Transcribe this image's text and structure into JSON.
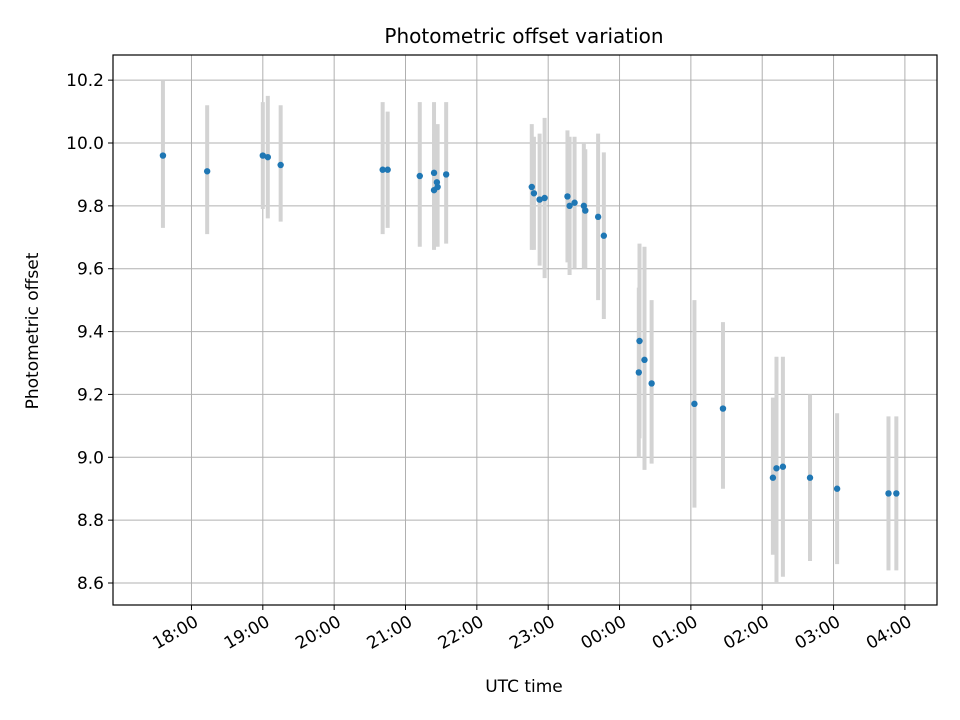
{
  "chart_data": {
    "type": "scatter",
    "title": "Photometric offset variation",
    "xlabel": "UTC time",
    "ylabel": "Photometric offset",
    "xlim_hours": [
      16.9,
      28.45
    ],
    "ylim": [
      8.53,
      10.28
    ],
    "grid": true,
    "y_ticks": [
      8.6,
      8.8,
      9.0,
      9.2,
      9.4,
      9.6,
      9.8,
      10.0,
      10.2
    ],
    "y_tick_labels": [
      "8.6",
      "8.8",
      "9.0",
      "9.2",
      "9.4",
      "9.6",
      "9.8",
      "10.0",
      "10.2"
    ],
    "x_ticks_hours": [
      18,
      19,
      20,
      21,
      22,
      23,
      24,
      25,
      26,
      27,
      28
    ],
    "x_tick_labels": [
      "18:00",
      "19:00",
      "20:00",
      "21:00",
      "22:00",
      "23:00",
      "00:00",
      "01:00",
      "02:00",
      "03:00",
      "04:00"
    ],
    "marker_color": "#1f77b4",
    "errorbar_color": "#d3d3d3",
    "points": [
      {
        "t": 17.6,
        "y": 9.96,
        "lo": 9.73,
        "hi": 10.2
      },
      {
        "t": 18.22,
        "y": 9.91,
        "lo": 9.71,
        "hi": 10.12
      },
      {
        "t": 19.0,
        "y": 9.96,
        "lo": 9.79,
        "hi": 10.13
      },
      {
        "t": 19.07,
        "y": 9.955,
        "lo": 9.76,
        "hi": 10.15
      },
      {
        "t": 19.25,
        "y": 9.93,
        "lo": 9.75,
        "hi": 10.12
      },
      {
        "t": 20.68,
        "y": 9.915,
        "lo": 9.71,
        "hi": 10.13
      },
      {
        "t": 20.75,
        "y": 9.915,
        "lo": 9.73,
        "hi": 10.1
      },
      {
        "t": 21.2,
        "y": 9.895,
        "lo": 9.67,
        "hi": 10.13
      },
      {
        "t": 21.4,
        "y": 9.905,
        "lo": 9.66,
        "hi": 10.13
      },
      {
        "t": 21.4,
        "y": 9.85,
        "lo": 9.7,
        "hi": 10.03
      },
      {
        "t": 21.45,
        "y": 9.86,
        "lo": 9.67,
        "hi": 10.06
      },
      {
        "t": 21.44,
        "y": 9.875,
        "lo": 9.68,
        "hi": 10.05
      },
      {
        "t": 21.57,
        "y": 9.9,
        "lo": 9.68,
        "hi": 10.13
      },
      {
        "t": 22.77,
        "y": 9.86,
        "lo": 9.66,
        "hi": 10.06
      },
      {
        "t": 22.8,
        "y": 9.84,
        "lo": 9.66,
        "hi": 10.02
      },
      {
        "t": 22.88,
        "y": 9.82,
        "lo": 9.61,
        "hi": 10.03
      },
      {
        "t": 22.95,
        "y": 9.825,
        "lo": 9.57,
        "hi": 10.08
      },
      {
        "t": 23.27,
        "y": 9.83,
        "lo": 9.62,
        "hi": 10.04
      },
      {
        "t": 23.3,
        "y": 9.8,
        "lo": 9.58,
        "hi": 10.02
      },
      {
        "t": 23.37,
        "y": 9.81,
        "lo": 9.6,
        "hi": 10.02
      },
      {
        "t": 23.5,
        "y": 9.8,
        "lo": 9.6,
        "hi": 10.0
      },
      {
        "t": 23.52,
        "y": 9.785,
        "lo": 9.6,
        "hi": 9.98
      },
      {
        "t": 23.7,
        "y": 9.765,
        "lo": 9.5,
        "hi": 10.03
      },
      {
        "t": 23.78,
        "y": 9.705,
        "lo": 9.44,
        "hi": 9.97
      },
      {
        "t": 24.27,
        "y": 9.27,
        "lo": 9.0,
        "hi": 9.54
      },
      {
        "t": 24.28,
        "y": 9.37,
        "lo": 9.06,
        "hi": 9.68
      },
      {
        "t": 24.35,
        "y": 9.31,
        "lo": 8.96,
        "hi": 9.67
      },
      {
        "t": 24.45,
        "y": 9.235,
        "lo": 8.98,
        "hi": 9.5
      },
      {
        "t": 25.05,
        "y": 9.17,
        "lo": 8.84,
        "hi": 9.5
      },
      {
        "t": 25.45,
        "y": 9.155,
        "lo": 8.9,
        "hi": 9.43
      },
      {
        "t": 26.15,
        "y": 8.935,
        "lo": 8.69,
        "hi": 9.19
      },
      {
        "t": 26.2,
        "y": 8.965,
        "lo": 8.6,
        "hi": 9.32
      },
      {
        "t": 26.29,
        "y": 8.97,
        "lo": 8.62,
        "hi": 9.32
      },
      {
        "t": 26.67,
        "y": 8.935,
        "lo": 8.67,
        "hi": 9.2
      },
      {
        "t": 27.05,
        "y": 8.9,
        "lo": 8.66,
        "hi": 9.14
      },
      {
        "t": 27.77,
        "y": 8.885,
        "lo": 8.64,
        "hi": 9.13
      },
      {
        "t": 27.88,
        "y": 8.885,
        "lo": 8.64,
        "hi": 9.13
      }
    ]
  }
}
